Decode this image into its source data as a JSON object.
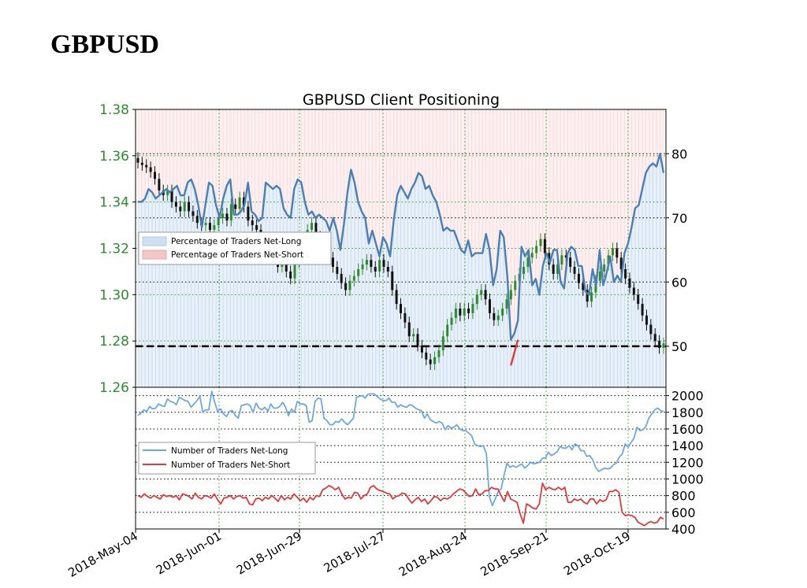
{
  "page_title": "GBPUSD",
  "chart_data": [
    {
      "type": "line",
      "title": "GBPUSD Client Positioning",
      "subtype": "candlestick with positioning overlay",
      "x_ticks": [
        "2018-May-04",
        "2018-Jun-01",
        "2018-Jun-29",
        "2018-Jul-27",
        "2018-Aug-24",
        "2018-Sep-21",
        "2018-Oct-19"
      ],
      "x_range": [
        "2018-May-04",
        "2018-Oct-30"
      ],
      "y_left": {
        "ticks": [
          "1.38",
          "1.36",
          "1.34",
          "1.32",
          "1.30",
          "1.28",
          "1.26"
        ],
        "range": [
          1.26,
          1.38
        ],
        "color": "#2e8b2e"
      },
      "y_right": {
        "ticks": [
          "80",
          "70",
          "60",
          "50"
        ],
        "range": [
          43.6,
          86.9
        ]
      },
      "reference_line": 50,
      "grid": true,
      "legend": {
        "position": "middle-left",
        "entries": [
          "Percentage of Traders Net-Long",
          "Percentage of Traders Net-Short"
        ]
      },
      "colors": {
        "net_long_fill": "#d6e6f4",
        "net_short_fill": "#f7d3d3",
        "pct_line": "#4a7fb5",
        "pct_line_short": "#e03a3a",
        "candle_up": "#2e8b2e",
        "candle_down": "#111111"
      },
      "price_series": {
        "name": "GBPUSD",
        "close": [
          1.357,
          1.356,
          1.355,
          1.353,
          1.35,
          1.345,
          1.343,
          1.345,
          1.34,
          1.338,
          1.336,
          1.34,
          1.336,
          1.334,
          1.331,
          1.33,
          1.331,
          1.328,
          1.33,
          1.333,
          1.335,
          1.332,
          1.339,
          1.337,
          1.342,
          1.338,
          1.332,
          1.33,
          1.328,
          1.321,
          1.323,
          1.318,
          1.317,
          1.312,
          1.315,
          1.31,
          1.307,
          1.314,
          1.318,
          1.323,
          1.328,
          1.331,
          1.325,
          1.32,
          1.318,
          1.316,
          1.312,
          1.309,
          1.305,
          1.302,
          1.306,
          1.308,
          1.311,
          1.313,
          1.315,
          1.312,
          1.31,
          1.315,
          1.312,
          1.31,
          1.302,
          1.296,
          1.292,
          1.288,
          1.282,
          1.283,
          1.278,
          1.275,
          1.272,
          1.27,
          1.273,
          1.276,
          1.282,
          1.287,
          1.29,
          1.294,
          1.291,
          1.294,
          1.292,
          1.296,
          1.3,
          1.302,
          1.298,
          1.292,
          1.289,
          1.291,
          1.294,
          1.298,
          1.302,
          1.306,
          1.309,
          1.312,
          1.316,
          1.318,
          1.321,
          1.324,
          1.318,
          1.313,
          1.309,
          1.313,
          1.317,
          1.316,
          1.312,
          1.309,
          1.305,
          1.302,
          1.297,
          1.301,
          1.306,
          1.31,
          1.313,
          1.317,
          1.32,
          1.316,
          1.311,
          1.307,
          1.303,
          1.3,
          1.296,
          1.291,
          1.287,
          1.283,
          1.28,
          1.277,
          1.279
        ]
      },
      "pct_net_long": [
        72.5,
        72.5,
        73.0,
        74.5,
        74.0,
        73.0,
        73.5,
        74.0,
        74.5,
        74.0,
        74.5,
        75.0,
        73.5,
        73.5,
        75.5,
        76.0,
        74.5,
        72.0,
        68.5,
        72.0,
        75.5,
        75.0,
        72.0,
        70.0,
        73.0,
        75.0,
        76.0,
        70.5,
        70.5,
        71.0,
        72.0,
        75.5,
        71.0,
        70.5,
        69.5,
        70.0,
        75.5,
        75.0,
        74.5,
        75.0,
        74.5,
        71.5,
        70.5,
        70.0,
        74.5,
        76.0,
        75.5,
        72.5,
        70.5,
        71.0,
        70.0,
        70.5,
        70.0,
        69.5,
        68.0,
        70.0,
        68.0,
        65.0,
        69.0,
        74.0,
        77.5,
        75.5,
        72.5,
        71.0,
        70.0,
        66.0,
        68.0,
        66.0,
        64.0,
        67.0,
        66.0,
        64.0,
        69.5,
        73.5,
        75.0,
        74.0,
        73.0,
        74.5,
        75.5,
        77.0,
        76.5,
        74.5,
        75.0,
        73.5,
        72.5,
        70.5,
        68.0,
        68.5,
        68.0,
        68.0,
        66.5,
        65.0,
        64.5,
        66.5,
        64.0,
        64.5,
        64.5,
        64.5,
        67.5,
        65.0,
        59.5,
        62.0,
        68.0,
        67.0,
        61.0,
        51.0,
        52.0,
        54.0,
        65.5,
        64.0,
        65.0,
        59.5,
        60.5,
        58.0,
        62.5,
        64.5,
        63.0,
        65.0,
        65.0,
        60.0,
        59.0,
        64.5,
        65.5,
        65.0,
        62.5,
        62.5,
        58.5,
        58.0,
        62.0,
        59.5,
        65.0,
        59.5,
        61.5,
        64.0,
        60.0,
        61.0,
        60.0,
        64.5,
        66.0,
        68.5,
        71.5,
        72.0,
        74.5,
        77.0,
        78.0,
        78.5,
        78.0,
        80.0,
        77.0
      ],
      "pct_net_short_segment": {
        "from_index": 105,
        "values": [
          47.0,
          49.0,
          51.0
        ]
      }
    },
    {
      "type": "line",
      "x_range": [
        "2018-May-04",
        "2018-Oct-30"
      ],
      "y_ticks": [
        "2000",
        "1800",
        "1600",
        "1400",
        "1200",
        "1000",
        "800",
        "600",
        "400"
      ],
      "y_range": [
        400,
        2100
      ],
      "grid": true,
      "legend": {
        "position": "middle-left",
        "entries": [
          "Number of Traders Net-Long",
          "Number of Traders Net-Short"
        ]
      },
      "series": [
        {
          "name": "Number of Traders Net-Long",
          "color": "#6fa8e0",
          "values": [
            1760,
            1790,
            1830,
            1810,
            1870,
            1840,
            1850,
            1900,
            1880,
            1870,
            1960,
            1930,
            1920,
            1890,
            1980,
            1960,
            1940,
            1930,
            1860,
            1900,
            1940,
            1990,
            1800,
            1830,
            1830,
            2050,
            1920,
            1810,
            1840,
            1780,
            1750,
            1810,
            1820,
            1760,
            1730,
            1880,
            1890,
            1900,
            1880,
            1800,
            1910,
            1850,
            1830,
            1860,
            1810,
            1900,
            1850,
            1850,
            1870,
            1920,
            1860,
            1760,
            1840,
            1800,
            1930,
            1900,
            1900,
            1880,
            1680,
            1700,
            1930,
            1970,
            1960,
            1730,
            1700,
            1650,
            1650,
            1690,
            1680,
            1720,
            1680,
            1650,
            1690,
            1730,
            1980,
            1990,
            2000,
            1970,
            2020,
            2020,
            2020,
            1990,
            1960,
            1940,
            1940,
            1970,
            1920,
            1920,
            1860,
            1890,
            1870,
            1860,
            1890,
            1880,
            1850,
            1830,
            1820,
            1730,
            1780,
            1710,
            1690,
            1670,
            1690,
            1670,
            1590,
            1640,
            1610,
            1620,
            1650,
            1600,
            1580,
            1580,
            1550,
            1520,
            1420,
            1400,
            1390,
            1400,
            1300,
            790,
            680,
            760,
            850,
            880,
            1050,
            1190,
            1140,
            1160,
            1140,
            1160,
            1180,
            1130,
            1160,
            1200,
            1180,
            1190,
            1200,
            1250,
            1250,
            1320,
            1280,
            1300,
            1330,
            1390,
            1370,
            1370,
            1400,
            1350,
            1420,
            1400,
            1340,
            1340,
            1270,
            1280,
            1230,
            1140,
            1090,
            1110,
            1130,
            1120,
            1130,
            1170,
            1190,
            1260,
            1300,
            1420,
            1380,
            1440,
            1490,
            1620,
            1580,
            1590,
            1630,
            1730,
            1780,
            1830,
            1850,
            1820,
            1810
          ]
        },
        {
          "name": "Number of Traders Net-Short",
          "color": "#e03a3a",
          "values": [
            800,
            780,
            820,
            790,
            770,
            800,
            780,
            760,
            810,
            790,
            800,
            780,
            800,
            750,
            820,
            810,
            790,
            760,
            830,
            780,
            760,
            800,
            790,
            770,
            820,
            750,
            700,
            770,
            780,
            800,
            760,
            790,
            800,
            770,
            780,
            700,
            690,
            760,
            770,
            740,
            780,
            760,
            800,
            770,
            730,
            800,
            750,
            780,
            760,
            820,
            780,
            740,
            770,
            720,
            780,
            750,
            800,
            790,
            870,
            890,
            920,
            900,
            870,
            900,
            820,
            760,
            780,
            770,
            840,
            830,
            760,
            800,
            820,
            900,
            920,
            880,
            860,
            850,
            830,
            820,
            760,
            790,
            800,
            830,
            820,
            760,
            710,
            750,
            780,
            730,
            760,
            700,
            740,
            790,
            780,
            740,
            770,
            760,
            780,
            820,
            850,
            880,
            870,
            830,
            790,
            800,
            880,
            810,
            820,
            860,
            860,
            900,
            880,
            880,
            800,
            730,
            850,
            760,
            740,
            720,
            580,
            470,
            700,
            680,
            650,
            640,
            700,
            950,
            870,
            900,
            880,
            870,
            900,
            870,
            900,
            720,
            720,
            760,
            740,
            760,
            720,
            700,
            760,
            760,
            700,
            750,
            730,
            750,
            850,
            850,
            870,
            840,
            600,
            560,
            570,
            560,
            540,
            480,
            460,
            440,
            470,
            490,
            470,
            480,
            540,
            520
          ]
        }
      ]
    }
  ]
}
